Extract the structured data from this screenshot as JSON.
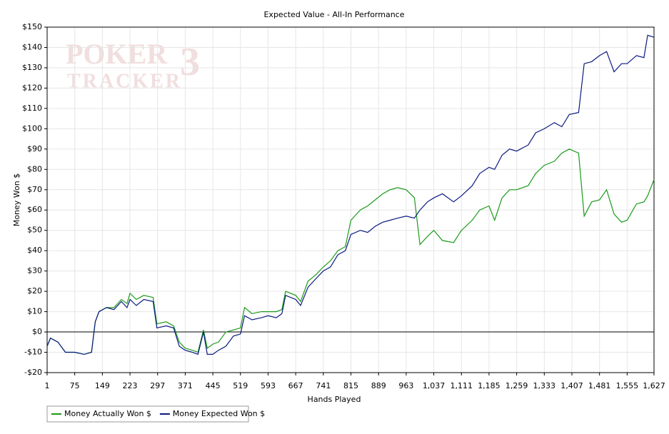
{
  "chart_data": {
    "type": "line",
    "title": "Expected Value - All-In Performance",
    "x_label": "Hands Played",
    "y_label": "Money Won $",
    "watermark": {
      "brand": "POKER",
      "product": "TRACKER",
      "version": "3"
    },
    "xlim": [
      1,
      1627
    ],
    "ylim": [
      -20,
      150
    ],
    "xticks": [
      1,
      75,
      149,
      223,
      297,
      371,
      445,
      519,
      593,
      667,
      741,
      815,
      889,
      963,
      {
        "value": 1037,
        "label": "1,037"
      },
      {
        "value": 1111,
        "label": "1,111"
      },
      {
        "value": 1185,
        "label": "1,185"
      },
      {
        "value": 1259,
        "label": "1,259"
      },
      {
        "value": 1333,
        "label": "1,333"
      },
      {
        "value": 1407,
        "label": "1,407"
      },
      {
        "value": 1481,
        "label": "1,481"
      },
      {
        "value": 1555,
        "label": "1,555"
      },
      {
        "value": 1627,
        "label": "1,627"
      }
    ],
    "yticks": [
      {
        "value": -20,
        "label": "-$20"
      },
      {
        "value": -10,
        "label": "-$10"
      },
      {
        "value": 0,
        "label": "$0"
      },
      {
        "value": 10,
        "label": "$10"
      },
      {
        "value": 20,
        "label": "$20"
      },
      {
        "value": 30,
        "label": "$30"
      },
      {
        "value": 40,
        "label": "$40"
      },
      {
        "value": 50,
        "label": "$50"
      },
      {
        "value": 60,
        "label": "$60"
      },
      {
        "value": 70,
        "label": "$70"
      },
      {
        "value": 80,
        "label": "$80"
      },
      {
        "value": 90,
        "label": "$90"
      },
      {
        "value": 100,
        "label": "$100"
      },
      {
        "value": 110,
        "label": "$110"
      },
      {
        "value": 120,
        "label": "$120"
      },
      {
        "value": 130,
        "label": "$130"
      },
      {
        "value": 140,
        "label": "$140"
      },
      {
        "value": 150,
        "label": "$150"
      }
    ],
    "grid": true,
    "hline": 0,
    "legend": "bottom-left",
    "x": [
      1,
      10,
      30,
      50,
      75,
      100,
      120,
      130,
      140,
      160,
      180,
      200,
      215,
      223,
      240,
      260,
      285,
      295,
      320,
      340,
      355,
      371,
      390,
      405,
      420,
      430,
      445,
      460,
      480,
      500,
      519,
      530,
      550,
      575,
      593,
      615,
      630,
      640,
      667,
      680,
      700,
      720,
      741,
      760,
      780,
      800,
      815,
      840,
      860,
      880,
      900,
      920,
      940,
      963,
      985,
      1000,
      1020,
      1037,
      1060,
      1090,
      1111,
      1140,
      1160,
      1185,
      1200,
      1220,
      1240,
      1259,
      1290,
      1310,
      1333,
      1360,
      1380,
      1400,
      1425,
      1440,
      1460,
      1481,
      1500,
      1520,
      1540,
      1555,
      1580,
      1600,
      1610,
      1627
    ],
    "series": [
      {
        "name": "Money Actually Won $",
        "color": "#1a9a1a",
        "values": [
          -7,
          -3,
          -5,
          -10,
          -10,
          -11,
          -10,
          5,
          10,
          12,
          12,
          16,
          14,
          19,
          16,
          18,
          17,
          4,
          5,
          3,
          -5,
          -8,
          -9,
          -10,
          1,
          -8,
          -6,
          -5,
          0,
          1,
          2,
          12,
          9,
          10,
          10,
          10,
          11,
          20,
          18,
          15,
          25,
          28,
          32,
          35,
          40,
          42,
          55,
          60,
          62,
          65,
          68,
          70,
          71,
          70,
          66,
          43,
          47,
          50,
          45,
          44,
          50,
          55,
          60,
          62,
          55,
          66,
          70,
          70,
          72,
          78,
          82,
          84,
          88,
          90,
          88,
          57,
          64,
          65,
          70,
          58,
          54,
          55,
          63,
          64,
          67,
          75
        ]
      },
      {
        "name": "Money Expected Won $",
        "color": "#0a1a80",
        "values": [
          -7,
          -3,
          -5,
          -10,
          -10,
          -11,
          -10,
          5,
          10,
          12,
          11,
          15,
          12,
          16,
          13,
          16,
          15,
          2,
          3,
          2,
          -7,
          -9,
          -10,
          -11,
          0,
          -11,
          -11,
          -9,
          -7,
          -2,
          -1,
          8,
          6,
          7,
          8,
          7,
          9,
          18,
          16,
          13,
          22,
          26,
          30,
          32,
          38,
          40,
          48,
          50,
          49,
          52,
          54,
          55,
          56,
          57,
          56,
          60,
          64,
          66,
          68,
          64,
          67,
          72,
          78,
          81,
          80,
          87,
          90,
          89,
          92,
          98,
          100,
          103,
          101,
          107,
          108,
          132,
          133,
          136,
          138,
          128,
          132,
          132,
          136,
          135,
          146,
          145
        ]
      }
    ]
  }
}
